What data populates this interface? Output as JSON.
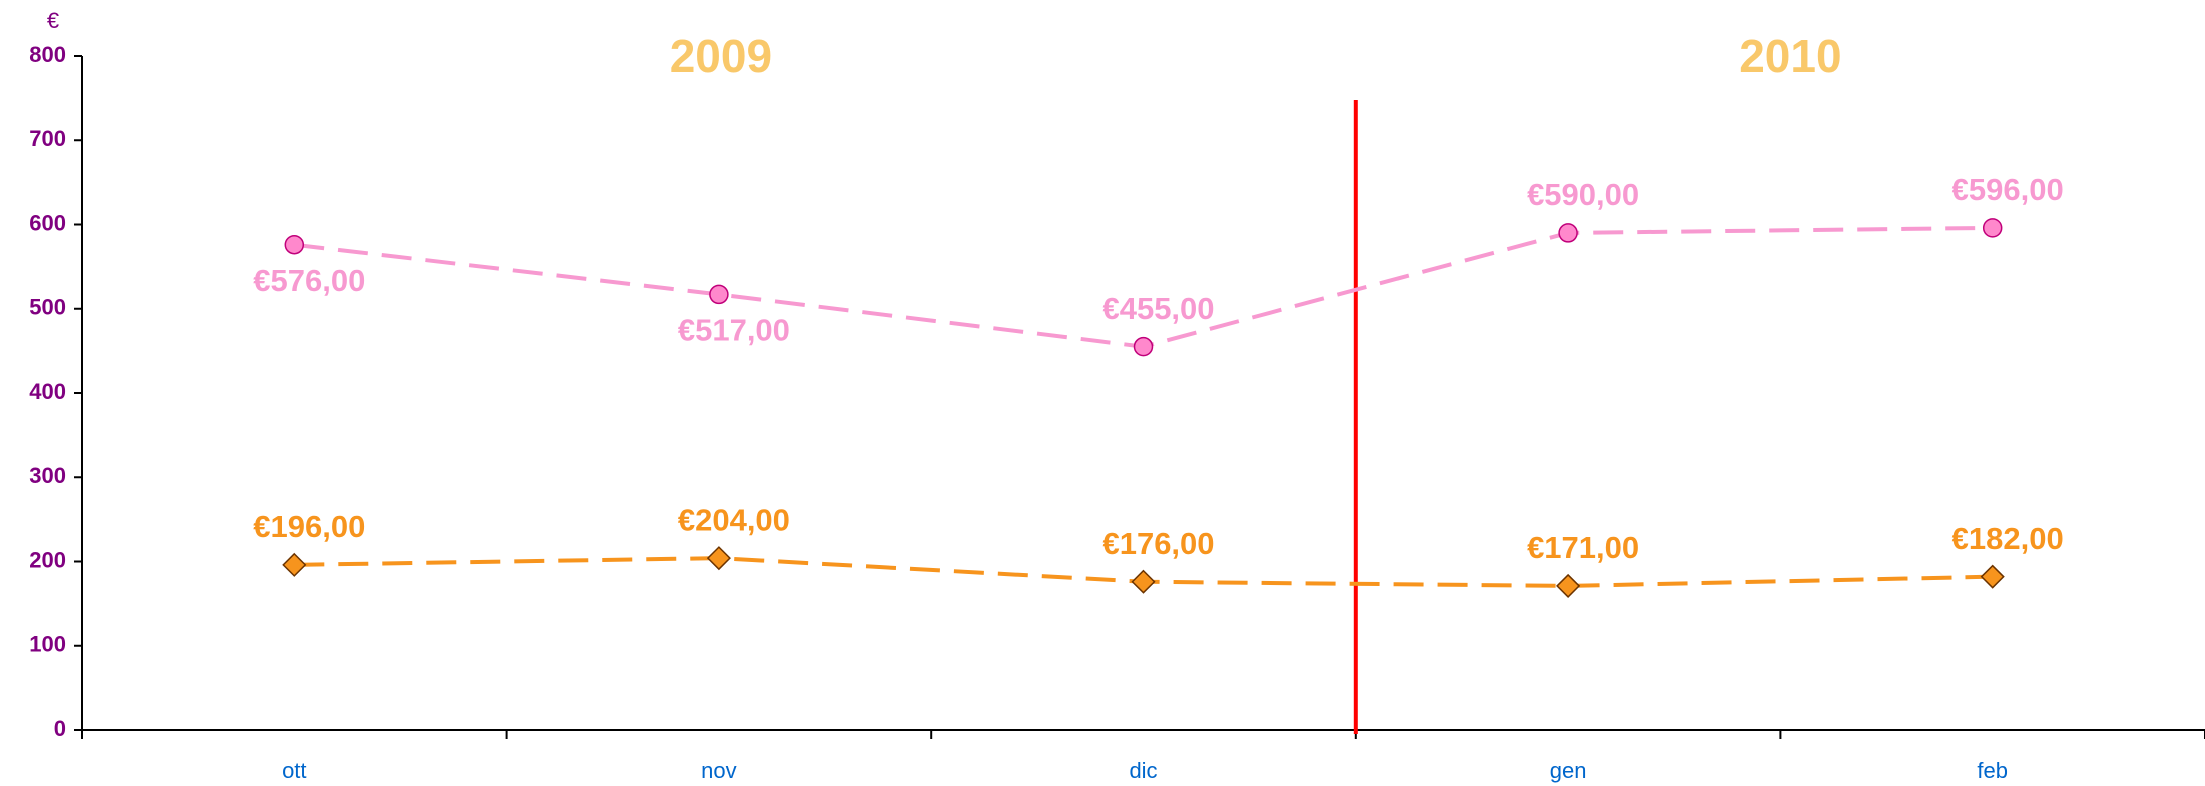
{
  "chart_data": {
    "type": "line",
    "y_unit": "€",
    "annotations": [
      "2009",
      "2010"
    ],
    "categories": [
      "ott",
      "nov",
      "dic",
      "gen",
      "feb"
    ],
    "series": [
      {
        "color": "#f799d0",
        "marker": "circle",
        "values": [
          576,
          517,
          455,
          590,
          596
        ],
        "value_labels": [
          "€576,00",
          "€517,00",
          "€455,00",
          "€590,00",
          "€596,00"
        ]
      },
      {
        "color": "#f7941d",
        "marker": "diamond",
        "values": [
          196,
          204,
          176,
          171,
          182
        ],
        "value_labels": [
          "€196,00",
          "€204,00",
          "€176,00",
          "€171,00",
          "€182,00"
        ]
      }
    ],
    "ylim": [
      0,
      800
    ],
    "yticks": [
      0,
      100,
      200,
      300,
      400,
      500,
      600,
      700,
      800
    ],
    "grid": false
  }
}
